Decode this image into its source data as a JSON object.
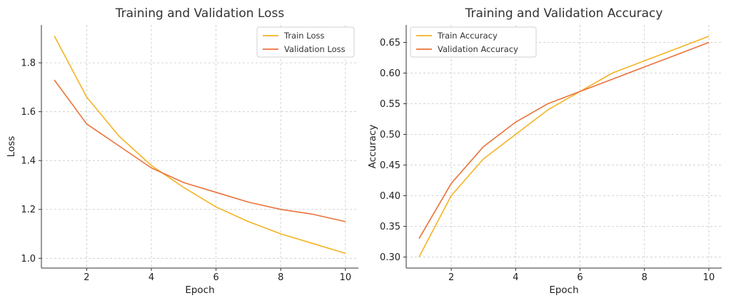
{
  "chart_data": [
    {
      "type": "line",
      "title": "Training and Validation Loss",
      "xlabel": "Epoch",
      "ylabel": "Loss",
      "x": [
        1,
        2,
        3,
        4,
        5,
        6,
        7,
        8,
        9,
        10
      ],
      "xlim": [
        0.6,
        10.4
      ],
      "ylim": [
        0.96,
        1.955
      ],
      "xticks": [
        2,
        4,
        6,
        8,
        10
      ],
      "yticks": [
        1.0,
        1.2,
        1.4,
        1.6,
        1.8
      ],
      "ytick_decimals": 1,
      "grid": true,
      "legend": "top-right",
      "series": [
        {
          "name": "Train Loss",
          "color": "#f5b323",
          "values": [
            1.91,
            1.66,
            1.5,
            1.38,
            1.29,
            1.21,
            1.15,
            1.1,
            1.06,
            1.02
          ]
        },
        {
          "name": "Validation Loss",
          "color": "#e9733a",
          "values": [
            1.73,
            1.55,
            1.46,
            1.37,
            1.31,
            1.27,
            1.23,
            1.2,
            1.18,
            1.15
          ]
        }
      ]
    },
    {
      "type": "line",
      "title": "Training and Validation Accuracy",
      "xlabel": "Epoch",
      "ylabel": "Accuracy",
      "x": [
        1,
        2,
        3,
        4,
        5,
        6,
        7,
        8,
        9,
        10
      ],
      "xlim": [
        0.6,
        10.4
      ],
      "ylim": [
        0.282,
        0.6785
      ],
      "xticks": [
        2,
        4,
        6,
        8,
        10
      ],
      "yticks": [
        0.3,
        0.35,
        0.4,
        0.45,
        0.5,
        0.55,
        0.6,
        0.65
      ],
      "ytick_decimals": 2,
      "grid": true,
      "legend": "top-left",
      "series": [
        {
          "name": "Train Accuracy",
          "color": "#f5b323",
          "values": [
            0.3,
            0.4,
            0.46,
            0.5,
            0.54,
            0.57,
            0.6,
            0.62,
            0.64,
            0.66
          ]
        },
        {
          "name": "Validation Accuracy",
          "color": "#e9733a",
          "values": [
            0.33,
            0.42,
            0.48,
            0.52,
            0.55,
            0.57,
            0.59,
            0.61,
            0.63,
            0.65
          ]
        }
      ]
    }
  ]
}
